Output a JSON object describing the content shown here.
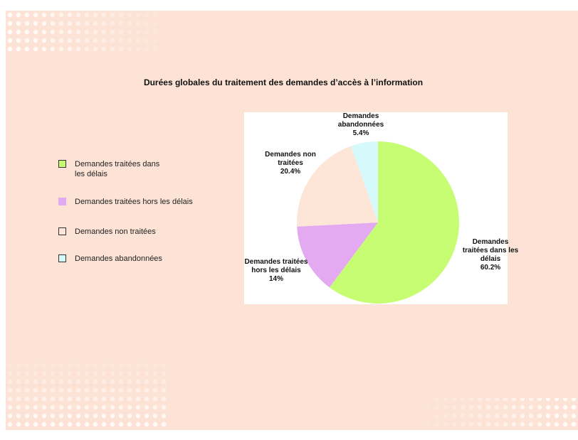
{
  "chart_data": {
    "type": "pie",
    "title": "Durées globales du traitement des demandes d’accès à l’information",
    "categories": [
      "Demandes traitées dans les délais",
      "Demandes traitées hors les délais",
      "Demandes non traitées",
      "Demandes abandonnées"
    ],
    "values": [
      60.2,
      14,
      20.4,
      5.4
    ],
    "value_labels": [
      "60.2%",
      "14%",
      "20.4%",
      "5.4%"
    ],
    "colors": [
      "#c6fd72",
      "#e3a9f1",
      "#fde6d8",
      "#d6f9fb"
    ]
  }
}
